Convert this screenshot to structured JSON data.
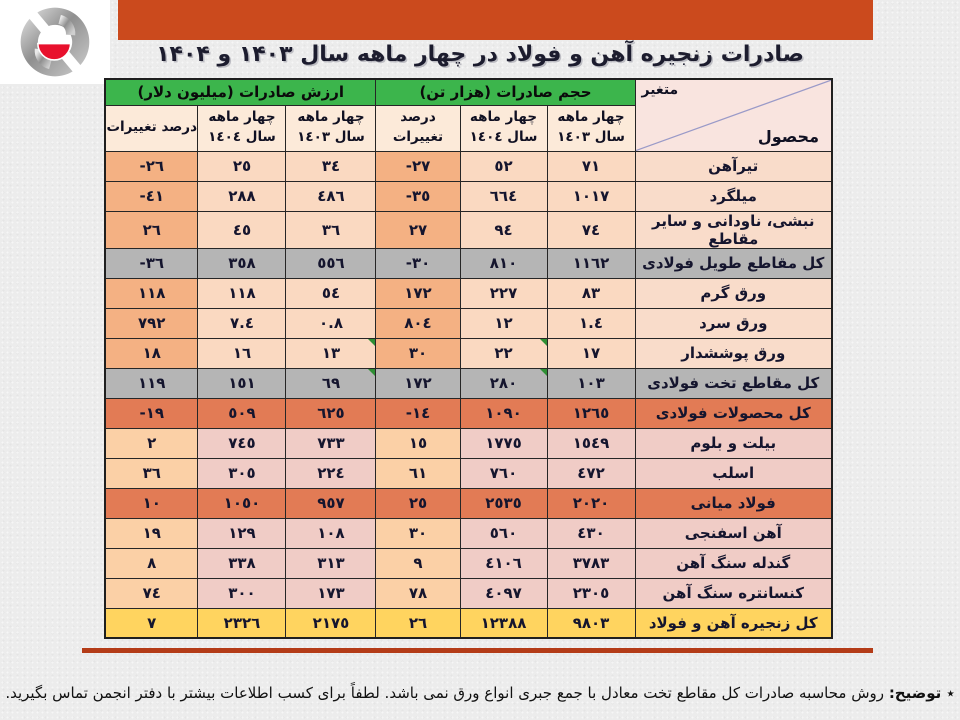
{
  "title": "صادرات زنجیره آهن و فولاد در چهار ماهه سال ۱۴۰۳ و ۱۴۰۴",
  "table": {
    "corner": {
      "top_label": "متغیر",
      "bottom_label": "محصول"
    },
    "groups": [
      {
        "label": "حجم صادرات (هزار تن)"
      },
      {
        "label": "ارزش صادرات (میلیون دلار)"
      }
    ],
    "sub": {
      "y1403_line1": "چهار ماهه",
      "y1403_line2": "سال ١٤٠٣",
      "y1404_line1": "چهار ماهه",
      "y1404_line2": "سال ١٤٠٤",
      "pct": "درصد تغییرات"
    },
    "rows": [
      {
        "product": "تیرآهن",
        "vol_1403": "٧١",
        "vol_1404": "٥٢",
        "vol_pct": "-٢٧",
        "val_1403": "٣٤",
        "val_1404": "٢٥",
        "val_pct": "-٢٦",
        "style": "normal"
      },
      {
        "product": "میلگرد",
        "vol_1403": "١٠١٧",
        "vol_1404": "٦٦٤",
        "vol_pct": "-٣٥",
        "val_1403": "٤٨٦",
        "val_1404": "٢٨٨",
        "val_pct": "-٤١",
        "style": "normal"
      },
      {
        "product": "نبشی، ناودانی و سایر مقاطع",
        "vol_1403": "٧٤",
        "vol_1404": "٩٤",
        "vol_pct": "٢٧",
        "val_1403": "٣٦",
        "val_1404": "٤٥",
        "val_pct": "٢٦",
        "style": "normal"
      },
      {
        "product": "کل مقاطع طویل فولادی",
        "vol_1403": "١١٦٢",
        "vol_1404": "٨١٠",
        "vol_pct": "-٣٠",
        "val_1403": "٥٥٦",
        "val_1404": "٣٥٨",
        "val_pct": "-٣٦",
        "style": "gray"
      },
      {
        "product": "ورق گرم",
        "vol_1403": "٨٣",
        "vol_1404": "٢٢٧",
        "vol_pct": "١٧٢",
        "val_1403": "٥٤",
        "val_1404": "١١٨",
        "val_pct": "١١٨",
        "style": "normal"
      },
      {
        "product": "ورق سرد",
        "vol_1403": "١.٤",
        "vol_1404": "١٢",
        "vol_pct": "٨٠٤",
        "val_1403": "٠.٨",
        "val_1404": "٧.٤",
        "val_pct": "٧٩٢",
        "style": "normal"
      },
      {
        "product": "ورق پوششدار",
        "vol_1403": "١٧",
        "vol_1404": "٢٢",
        "vol_pct": "٣٠",
        "val_1403": "١٣",
        "val_1404": "١٦",
        "val_pct": "١٨",
        "style": "normal",
        "markers": [
          "vol_1404",
          "val_1403"
        ]
      },
      {
        "product": "کل مقاطع تخت فولادی",
        "vol_1403": "١٠٣",
        "vol_1404": "٢٨٠",
        "vol_pct": "١٧٢",
        "val_1403": "٦٩",
        "val_1404": "١٥١",
        "val_pct": "١١٩",
        "style": "gray",
        "markers": [
          "vol_1404",
          "val_1403"
        ]
      },
      {
        "product": "کل محصولات فولادی",
        "vol_1403": "١٢٦٥",
        "vol_1404": "١٠٩٠",
        "vol_pct": "-١٤",
        "val_1403": "٦٢٥",
        "val_1404": "٥٠٩",
        "val_pct": "-١٩",
        "style": "salmon"
      },
      {
        "product": "بیلت و بلوم",
        "vol_1403": "١٥٤٩",
        "vol_1404": "١٧٧٥",
        "vol_pct": "١٥",
        "val_1403": "٧٣٣",
        "val_1404": "٧٤٥",
        "val_pct": "٢",
        "style": "pink"
      },
      {
        "product": "اسلب",
        "vol_1403": "٤٧٢",
        "vol_1404": "٧٦٠",
        "vol_pct": "٦١",
        "val_1403": "٢٢٤",
        "val_1404": "٣٠٥",
        "val_pct": "٣٦",
        "style": "pink"
      },
      {
        "product": "فولاد میانی",
        "vol_1403": "٢٠٢٠",
        "vol_1404": "٢٥٣٥",
        "vol_pct": "٢٥",
        "val_1403": "٩٥٧",
        "val_1404": "١٠٥٠",
        "val_pct": "١٠",
        "style": "salmon"
      },
      {
        "product": "آهن اسفنجی",
        "vol_1403": "٤٣٠",
        "vol_1404": "٥٦٠",
        "vol_pct": "٣٠",
        "val_1403": "١٠٨",
        "val_1404": "١٢٩",
        "val_pct": "١٩",
        "style": "pink"
      },
      {
        "product": "گندله سنگ آهن",
        "vol_1403": "٣٧٨٣",
        "vol_1404": "٤١٠٦",
        "vol_pct": "٩",
        "val_1403": "٣١٣",
        "val_1404": "٣٣٨",
        "val_pct": "٨",
        "style": "pink"
      },
      {
        "product": "کنسانتره سنگ آهن",
        "vol_1403": "٢٣٠٥",
        "vol_1404": "٤٠٩٧",
        "vol_pct": "٧٨",
        "val_1403": "١٧٣",
        "val_1404": "٣٠٠",
        "val_pct": "٧٤",
        "style": "pink"
      },
      {
        "product": "کل زنجیره آهن و فولاد",
        "vol_1403": "٩٨٠٣",
        "vol_1404": "١٢٣٨٨",
        "vol_pct": "٢٦",
        "val_1403": "٢١٧٥",
        "val_1404": "٢٣٢٦",
        "val_pct": "٧",
        "style": "yellow"
      }
    ]
  },
  "footnote": {
    "label": "٭ توضیح:",
    "text": "روش محاسبه صادرات کل مقاطع تخت معادل با جمع جبری انواع ورق نمی باشد. لطفاً برای کسب اطلاعات بیشتر با دفتر انجمن تماس بگیرید."
  },
  "colors": {
    "banner": "#cb4a1d",
    "header_green": "#3cb54c",
    "row_gray": "#b5b5b5",
    "row_salmon": "#e27b55",
    "row_yellow": "#ffd45f",
    "pct_column_peach": "#f4b183",
    "divider_red": "#b43c18",
    "logo_red": "#e8112d"
  }
}
